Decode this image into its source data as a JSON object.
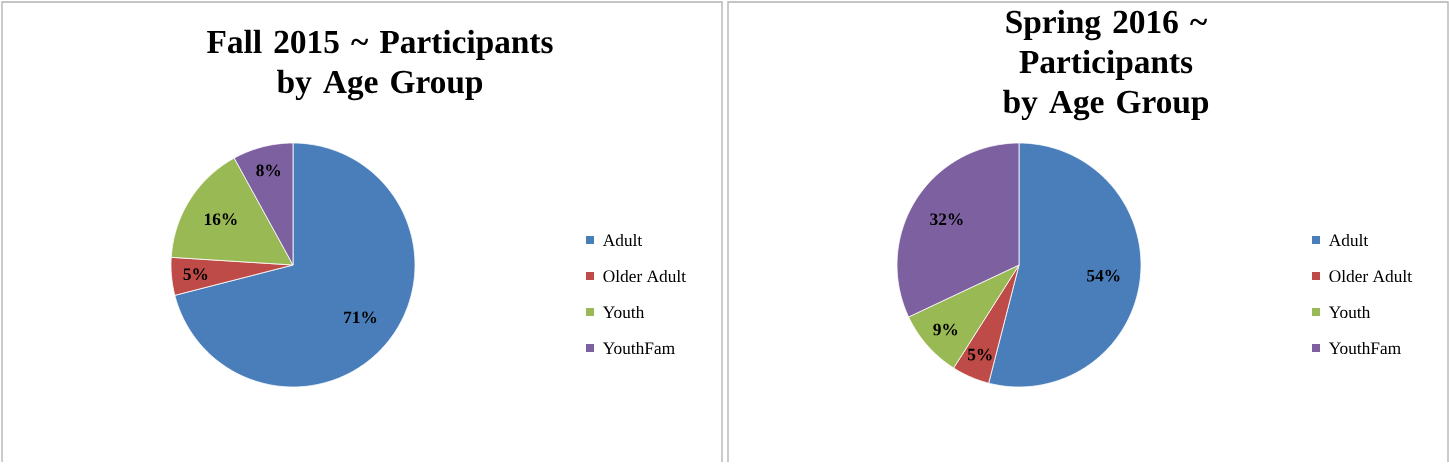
{
  "chart_data": [
    {
      "type": "pie",
      "title": "Fall 2015 ~ Participants by Age Group",
      "categories": [
        "Adult",
        "Older Adult",
        "Youth",
        "YouthFam"
      ],
      "values": [
        71,
        5,
        16,
        8
      ],
      "value_labels": [
        "71%",
        "5%",
        "16%",
        "8%"
      ],
      "colors": [
        "#4a7ebb",
        "#be4b48",
        "#98b954",
        "#7d60a0"
      ],
      "legend": "right"
    },
    {
      "type": "pie",
      "title": "Spring 2016 ~ Participants by Age Group",
      "categories": [
        "Adult",
        "Older Adult",
        "Youth",
        "YouthFam"
      ],
      "values": [
        54,
        5,
        9,
        32
      ],
      "value_labels": [
        "54%",
        "5%",
        "9%",
        "32%"
      ],
      "colors": [
        "#4a7ebb",
        "#be4b48",
        "#98b954",
        "#7d60a0"
      ],
      "legend": "right"
    }
  ]
}
